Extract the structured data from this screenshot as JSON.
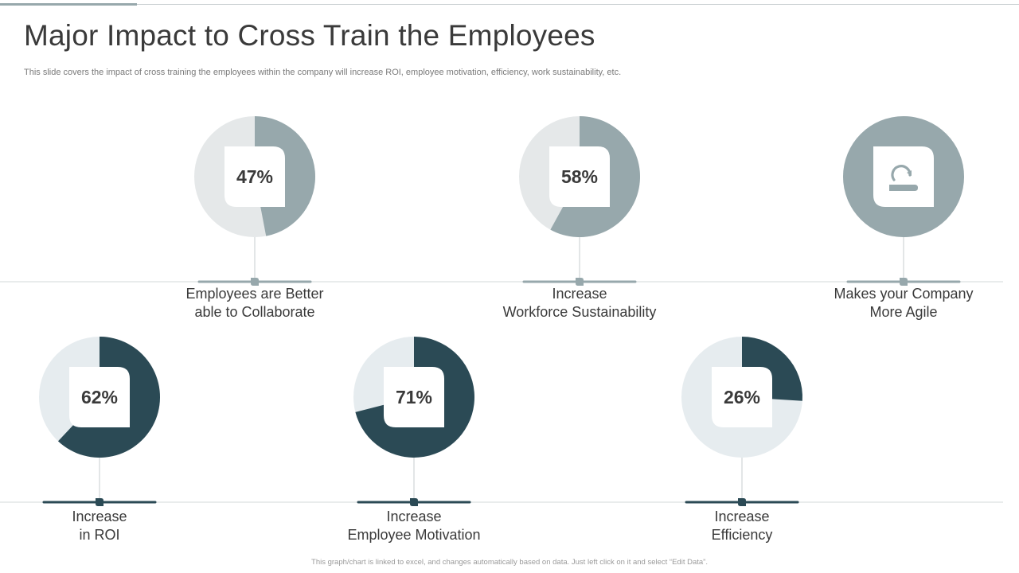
{
  "page": {
    "title": "Major Impact to Cross Train the Employees",
    "subtitle": "This slide covers the impact of cross training the employees within the company will increase ROI, employee motivation, efficiency, work sustainability, etc.",
    "footer": "This graph/chart is linked to excel, and changes automatically based on data. Just left click on it and select “Edit Data”."
  },
  "colors": {
    "accent_top": "#97a8ac",
    "accent_bottom": "#2b4a55",
    "track_top": "#e5e8e9",
    "track_bottom": "#e6ecef",
    "rule": "#d3d8da"
  },
  "chart_data": {
    "type": "pie",
    "title": "Major Impact to Cross Train the Employees",
    "unit": "%",
    "items": [
      {
        "row": "top",
        "value": 47,
        "display": "47%",
        "label_lines": [
          "Employees are Better",
          "able to Collaborate"
        ]
      },
      {
        "row": "top",
        "value": 58,
        "display": "58%",
        "label_lines": [
          "Increase",
          "Workforce Sustainability"
        ]
      },
      {
        "row": "top",
        "value": 100,
        "icon": "agile-turn-icon",
        "label_lines": [
          "Makes your Company",
          "More Agile"
        ]
      },
      {
        "row": "bottom",
        "value": 62,
        "display": "62%",
        "label_lines": [
          "Increase",
          "in ROI"
        ]
      },
      {
        "row": "bottom",
        "value": 71,
        "display": "71%",
        "label_lines": [
          "Increase",
          "Employee Motivation"
        ]
      },
      {
        "row": "bottom",
        "value": 26,
        "display": "26%",
        "label_lines": [
          "Increase",
          "Efficiency"
        ]
      }
    ]
  }
}
